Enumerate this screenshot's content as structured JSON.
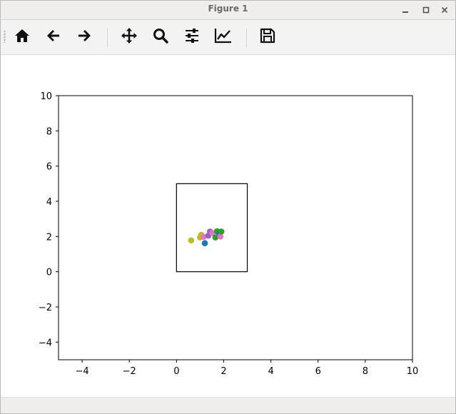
{
  "window": {
    "title": "Figure 1",
    "controls": {
      "minimize_icon": "minimize-icon",
      "maximize_icon": "maximize-icon",
      "close_icon": "close-icon"
    }
  },
  "toolbar": {
    "buttons": [
      {
        "name": "home",
        "icon": "home-icon"
      },
      {
        "name": "back",
        "icon": "arrow-left-icon"
      },
      {
        "name": "forward",
        "icon": "arrow-right-icon"
      },
      {
        "name": "pan",
        "icon": "move-icon"
      },
      {
        "name": "zoom",
        "icon": "zoom-icon"
      },
      {
        "name": "configure-subplots",
        "icon": "sliders-icon"
      },
      {
        "name": "edit-axes",
        "icon": "chart-line-icon"
      },
      {
        "name": "save",
        "icon": "save-icon"
      }
    ]
  },
  "chart_data": {
    "type": "scatter",
    "title": "",
    "xlabel": "",
    "ylabel": "",
    "xlim": [
      -5,
      10
    ],
    "ylim": [
      -5,
      10
    ],
    "xticks": [
      "−4",
      "−2",
      "0",
      "2",
      "4",
      "6",
      "8",
      "10"
    ],
    "yticks": [
      "10",
      "8",
      "6",
      "4",
      "2",
      "0",
      "−2",
      "−4"
    ],
    "xtick_values": [
      -4,
      -2,
      0,
      2,
      4,
      6,
      8,
      10
    ],
    "ytick_values": [
      10,
      8,
      6,
      4,
      2,
      0,
      -2,
      -4
    ],
    "grid": false,
    "rectangle": {
      "x": 0,
      "y": 0,
      "width": 3,
      "height": 5,
      "edge_color": "#000000"
    },
    "points": [
      {
        "x": 0.62,
        "y": 1.78,
        "color": "#bcbd22"
      },
      {
        "x": 1.0,
        "y": 1.95,
        "color": "#bcbd22"
      },
      {
        "x": 1.05,
        "y": 2.1,
        "color": "#bcbd22"
      },
      {
        "x": 1.15,
        "y": 1.98,
        "color": "#e377c2"
      },
      {
        "x": 1.2,
        "y": 1.62,
        "color": "#1f77b4"
      },
      {
        "x": 1.35,
        "y": 2.05,
        "color": "#9467bd"
      },
      {
        "x": 1.42,
        "y": 2.28,
        "color": "#9467bd"
      },
      {
        "x": 1.52,
        "y": 2.2,
        "color": "#e377c2"
      },
      {
        "x": 1.65,
        "y": 1.95,
        "color": "#2ca02c"
      },
      {
        "x": 1.72,
        "y": 2.3,
        "color": "#2ca02c"
      },
      {
        "x": 1.82,
        "y": 2.15,
        "color": "#1f77b4"
      },
      {
        "x": 1.86,
        "y": 2.0,
        "color": "#e377c2"
      },
      {
        "x": 1.9,
        "y": 2.28,
        "color": "#2ca02c"
      }
    ]
  }
}
